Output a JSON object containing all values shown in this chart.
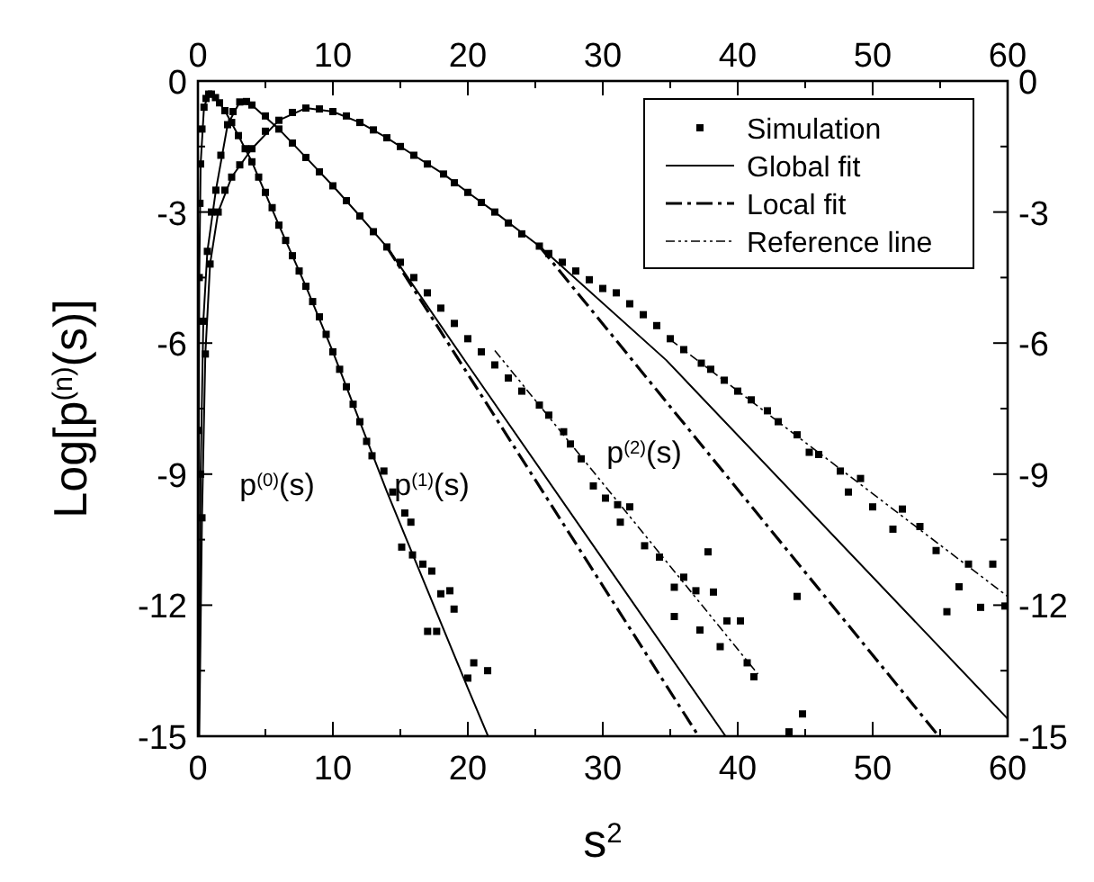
{
  "chart_data": {
    "type": "scatter",
    "xlabel": "s$^{2}$",
    "ylabel": "Log[p$^{(n)}$(s)]",
    "xlim": [
      0,
      60
    ],
    "xticks": [
      0,
      {
        "value": 5,
        "label": null
      },
      10,
      {
        "value": 15,
        "label": null
      },
      20,
      {
        "value": 25,
        "label": null
      },
      30,
      {
        "value": 35,
        "label": null
      },
      40,
      {
        "value": 45,
        "label": null
      },
      50,
      {
        "value": 55,
        "label": null
      },
      60
    ],
    "x2lim": [
      0,
      60
    ],
    "x2ticks": [
      0,
      {
        "value": 5,
        "label": null
      },
      10,
      {
        "value": 15,
        "label": null
      },
      20,
      {
        "value": 25,
        "label": null
      },
      30,
      {
        "value": 35,
        "label": null
      },
      40,
      {
        "value": 45,
        "label": null
      },
      50,
      {
        "value": 55,
        "label": null
      },
      60
    ],
    "ylim": [
      -15,
      0
    ],
    "yticks": [
      -15,
      {
        "value": -13.5,
        "label": null
      },
      -12,
      {
        "value": -10.5,
        "label": null
      },
      -9,
      {
        "value": -7.5,
        "label": null
      },
      -6,
      {
        "value": -4.5,
        "label": null
      },
      -3,
      {
        "value": -1.5,
        "label": null
      },
      0
    ],
    "y2lim": [
      -15,
      0
    ],
    "y2ticks": [
      -15,
      {
        "value": -13.5,
        "label": null
      },
      -12,
      {
        "value": -10.5,
        "label": null
      },
      -9,
      {
        "value": -7.5,
        "label": null
      },
      -6,
      {
        "value": -4.5,
        "label": null
      },
      -3,
      {
        "value": -1.5,
        "label": null
      },
      0
    ],
    "legend": "top right",
    "grid": false,
    "annotations": [
      "p$^{(0)}$(s)",
      "p$^{(1)}$(s)",
      "p$^{(2)}$(s)"
    ],
    "series": [
      {
        "name": "Simulation",
        "color": "#000000",
        "marker": "square",
        "x": [
          0.05,
          0.1,
          0.15,
          0.2,
          0.3,
          0.45,
          0.6,
          0.8,
          1,
          1.3,
          1.6,
          2,
          2.5,
          3,
          3.5,
          4,
          4.5,
          5,
          5.5,
          6,
          6.5,
          7,
          7.5,
          8,
          8.5,
          9,
          9.5,
          10,
          10.5,
          11,
          11.5,
          12,
          12.5,
          12.9,
          13.78,
          14.44,
          15.33,
          15.78,
          15.1,
          15.9,
          16.67,
          17.33,
          18,
          18.67,
          18.98,
          17.02,
          17.69,
          20.44,
          21.47,
          20,
          0.2,
          0.4,
          0.7,
          1,
          1.33,
          1.7,
          2.2,
          2.6,
          3.1,
          3.6,
          4,
          5,
          6,
          7,
          8,
          9,
          10,
          11,
          12,
          13,
          14,
          15,
          16,
          17,
          18,
          19,
          20,
          21,
          22,
          23,
          24,
          25.3,
          26,
          27.1,
          27.6,
          28.4,
          29.3,
          30.2,
          31.1,
          32,
          31.3,
          33.1,
          34.2,
          35.3,
          36,
          36.9,
          37.8,
          38.2,
          35.3,
          37.2,
          39.2,
          40.2,
          38.7,
          40.7,
          41.2,
          44.4,
          44.8,
          43.8,
          0.3,
          0.55,
          0.9,
          1.5,
          2,
          2.5,
          3.1,
          4,
          5,
          6,
          7,
          8,
          9,
          10,
          11,
          12,
          13,
          14,
          15,
          16,
          17,
          18.2,
          19,
          20,
          21,
          22,
          23,
          24,
          25.3,
          26,
          27,
          28,
          29,
          30,
          31,
          32,
          33,
          34,
          35,
          36,
          37.3,
          38,
          39,
          40,
          41,
          42.2,
          43,
          44.4,
          45.3,
          46,
          47.6,
          48.2,
          49.1,
          50,
          51.5,
          52.2,
          53.5,
          54.7,
          55.5,
          56.4,
          57.1,
          58,
          58.9,
          59.8
        ],
        "values": [
          -8,
          -4.5,
          -2.8,
          -1.9,
          -1.1,
          -0.6,
          -0.4,
          -0.3,
          -0.3,
          -0.38,
          -0.5,
          -0.68,
          -0.95,
          -1.25,
          -1.55,
          -1.85,
          -2.2,
          -2.55,
          -2.9,
          -3.3,
          -3.65,
          -4,
          -4.35,
          -4.7,
          -5.05,
          -5.4,
          -5.8,
          -6.2,
          -6.6,
          -7,
          -7.4,
          -7.8,
          -8.25,
          -8.58,
          -8.93,
          -9.41,
          -9.89,
          -10.1,
          -10.67,
          -10.85,
          -11.06,
          -11.22,
          -11.74,
          -11.67,
          -12.09,
          -12.6,
          -12.6,
          -13.32,
          -13.5,
          -13.67,
          -9,
          -5.5,
          -3.9,
          -3,
          -2.5,
          -1.7,
          -1,
          -0.7,
          -0.48,
          -0.47,
          -0.55,
          -0.8,
          -1.1,
          -1.42,
          -1.75,
          -2.08,
          -2.4,
          -2.74,
          -3.09,
          -3.45,
          -3.8,
          -4.15,
          -4.5,
          -4.85,
          -5.2,
          -5.55,
          -5.9,
          -6.2,
          -6.5,
          -6.8,
          -7.1,
          -7.42,
          -7.65,
          -8.03,
          -8.31,
          -8.65,
          -9.27,
          -9.55,
          -9.7,
          -9.75,
          -10.1,
          -10.64,
          -10.9,
          -11.59,
          -11.36,
          -11.67,
          -10.78,
          -11.7,
          -12.26,
          -12.57,
          -12.36,
          -12.36,
          -12.95,
          -13.32,
          -13.64,
          -11.8,
          -14.49,
          -14.9,
          -10,
          -6.25,
          -4.19,
          -3,
          -2.5,
          -2.2,
          -1.92,
          -1.55,
          -1.15,
          -0.9,
          -0.72,
          -0.62,
          -0.64,
          -0.7,
          -0.8,
          -0.95,
          -1.12,
          -1.3,
          -1.5,
          -1.7,
          -1.9,
          -2.13,
          -2.33,
          -2.55,
          -2.78,
          -3,
          -3.25,
          -3.5,
          -3.78,
          -3.95,
          -4.15,
          -4.35,
          -4.55,
          -4.75,
          -4.85,
          -5.1,
          -5.35,
          -5.6,
          -5.9,
          -6.15,
          -6.46,
          -6.6,
          -6.85,
          -7.1,
          -7.3,
          -7.55,
          -7.8,
          -8.1,
          -8.5,
          -8.55,
          -8.93,
          -9.41,
          -9.1,
          -9.75,
          -10.26,
          -9.8,
          -10.2,
          -10.75,
          -12.15,
          -11.58,
          -11.06,
          -12.05,
          -11.06,
          -12.02
        ]
      },
      {
        "type": "line",
        "name": "Global fit",
        "color": "#000000",
        "line_style": "solid",
        "x": [
          0,
          0.1,
          0.2,
          0.45,
          0.8,
          1.3,
          2,
          3,
          4,
          6,
          8,
          10,
          12,
          14,
          16,
          18,
          20,
          21.5
        ],
        "values": [
          -15,
          -4.5,
          -1.9,
          -0.6,
          -0.3,
          -0.38,
          -0.68,
          -1.25,
          -1.85,
          -3.3,
          -4.7,
          -6.2,
          -7.8,
          -9.4,
          -10.9,
          -12.4,
          -13.9,
          -15
        ]
      },
      {
        "type": "line",
        "color": "#000000",
        "line_style": "solid",
        "x": [
          0.05,
          0.2,
          0.4,
          0.7,
          1.33,
          2.2,
          3.1,
          4,
          6,
          8,
          10,
          12,
          14,
          20,
          30,
          39.1
        ],
        "values": [
          -15,
          -9,
          -5.5,
          -3.9,
          -2.5,
          -1,
          -0.48,
          -0.55,
          -1.1,
          -1.75,
          -2.4,
          -3.09,
          -3.8,
          -6.5,
          -10.95,
          -15
        ]
      },
      {
        "type": "line",
        "color": "#000000",
        "line_style": "solid",
        "x": [
          0.1,
          0.3,
          0.55,
          0.9,
          1.5,
          2.5,
          4,
          6,
          8,
          10,
          12,
          14,
          16,
          18.2,
          20,
          22,
          25.3,
          34.7,
          60
        ],
        "values": [
          -15,
          -10,
          -6.25,
          -4.19,
          -3,
          -2.2,
          -1.55,
          -0.9,
          -0.62,
          -0.7,
          -0.95,
          -1.3,
          -1.7,
          -2.13,
          -2.55,
          -3,
          -3.78,
          -6.39,
          -14.6
        ]
      },
      {
        "type": "line",
        "name": "Local fit",
        "color": "#000000",
        "line_style": "dashed",
        "x": [
          14,
          37.1
        ],
        "values": [
          -3.8,
          -15
        ]
      },
      {
        "type": "line",
        "color": "#000000",
        "line_style": "dashed",
        "x": [
          25.3,
          54.9
        ],
        "values": [
          -3.78,
          -15
        ]
      },
      {
        "type": "line",
        "name": "Reference line",
        "color": "#000000",
        "line_style": "dotted",
        "x": [
          22,
          41.5
        ],
        "values": [
          -6.17,
          -13.58
        ]
      },
      {
        "type": "line",
        "color": "#000000",
        "line_style": "dotted",
        "x": [
          35,
          60
        ],
        "values": [
          -5.92,
          -11.8
        ]
      }
    ]
  }
}
